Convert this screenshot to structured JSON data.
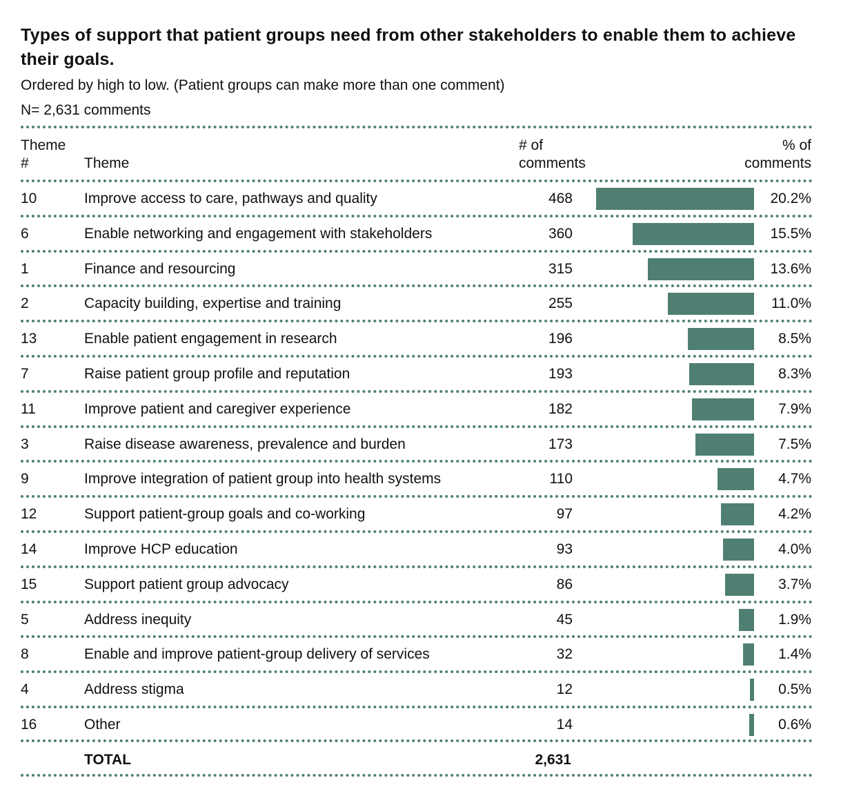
{
  "title": "Types of support that patient groups need from other stakeholders to enable them to achieve their goals.",
  "subtitle": "Ordered by high to low. (Patient groups can make more than one comment)",
  "n_label": "N= 2,631 comments",
  "headers": {
    "theme_num_1": "Theme",
    "theme_num_2": "#",
    "theme": "Theme",
    "count_1": "# of",
    "count_2": "comments",
    "pct_1": "% of",
    "pct_2": "comments"
  },
  "total": {
    "label": "TOTAL",
    "value": "2,631"
  },
  "colors": {
    "bar": "#4e7f72",
    "divider": "#4e7f72"
  },
  "chart_data": {
    "type": "bar",
    "orientation": "horizontal",
    "title": "Types of support that patient groups need from other stakeholders to enable them to achieve their goals.",
    "subtitle": "Ordered by high to low. (Patient groups can make more than one comment)",
    "columns": [
      "Theme #",
      "Theme",
      "# of comments",
      "% of comments"
    ],
    "rows": [
      {
        "num": "10",
        "theme": "Improve access to care, pathways and quality",
        "count": "468",
        "pct_label": "20.2%",
        "pct": 20.2
      },
      {
        "num": "6",
        "theme": "Enable networking and engagement with stakeholders",
        "count": "360",
        "pct_label": "15.5%",
        "pct": 15.5
      },
      {
        "num": "1",
        "theme": "Finance and resourcing",
        "count": "315",
        "pct_label": "13.6%",
        "pct": 13.6
      },
      {
        "num": "2",
        "theme": "Capacity building, expertise and training",
        "count": "255",
        "pct_label": "11.0%",
        "pct": 11.0
      },
      {
        "num": "13",
        "theme": "Enable patient engagement in research",
        "count": "196",
        "pct_label": "8.5%",
        "pct": 8.5
      },
      {
        "num": "7",
        "theme": "Raise patient group profile and reputation",
        "count": "193",
        "pct_label": "8.3%",
        "pct": 8.3
      },
      {
        "num": "11",
        "theme": "Improve patient and caregiver experience",
        "count": "182",
        "pct_label": "7.9%",
        "pct": 7.9
      },
      {
        "num": "3",
        "theme": "Raise disease awareness, prevalence and burden",
        "count": "173",
        "pct_label": "7.5%",
        "pct": 7.5
      },
      {
        "num": "9",
        "theme": "Improve integration of patient group into health systems",
        "count": "110",
        "pct_label": "4.7%",
        "pct": 4.7
      },
      {
        "num": "12",
        "theme": "Support patient-group goals and co-working",
        "count": "97",
        "pct_label": "4.2%",
        "pct": 4.2
      },
      {
        "num": "14",
        "theme": "Improve HCP education",
        "count": "93",
        "pct_label": "4.0%",
        "pct": 4.0
      },
      {
        "num": "15",
        "theme": "Support patient group advocacy",
        "count": "86",
        "pct_label": "3.7%",
        "pct": 3.7
      },
      {
        "num": "5",
        "theme": "Address inequity",
        "count": "45",
        "pct_label": "1.9%",
        "pct": 1.9
      },
      {
        "num": "8",
        "theme": "Enable and improve patient-group delivery of services",
        "count": "32",
        "pct_label": "1.4%",
        "pct": 1.4
      },
      {
        "num": "4",
        "theme": "Address stigma",
        "count": "12",
        "pct_label": "0.5%",
        "pct": 0.5
      },
      {
        "num": "16",
        "theme": "Other",
        "count": "14",
        "pct_label": "0.6%",
        "pct": 0.6
      }
    ],
    "xlim": [
      0,
      20.2
    ],
    "grid": false,
    "legend": "none"
  }
}
